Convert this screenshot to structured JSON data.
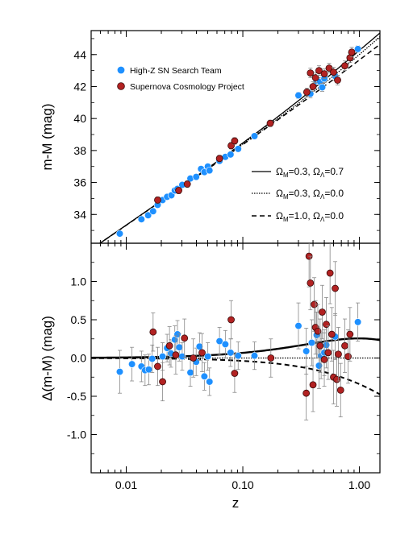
{
  "chart_data": [
    {
      "type": "scatter",
      "panel": "hubble-diagram",
      "ylabel": "m-M (mag)",
      "xlabel": "",
      "xscale": "log",
      "xlim": [
        0.005,
        1.5
      ],
      "ylim": [
        32.2,
        45.5
      ],
      "yticks": [
        "34",
        "36",
        "38",
        "40",
        "42",
        "44"
      ],
      "legend_placement": "top-left",
      "series": [
        {
          "name": "High-Z SN Search Team",
          "color": "#1e90ff",
          "points": [
            {
              "x": 0.0088,
              "y": 32.8,
              "err": 0.15
            },
            {
              "x": 0.0135,
              "y": 33.7,
              "err": 0.15
            },
            {
              "x": 0.0154,
              "y": 33.95,
              "err": 0.15
            },
            {
              "x": 0.017,
              "y": 34.2,
              "err": 0.15
            },
            {
              "x": 0.0186,
              "y": 34.6,
              "err": 0.15
            },
            {
              "x": 0.0205,
              "y": 34.9,
              "err": 0.15
            },
            {
              "x": 0.0224,
              "y": 35.1,
              "err": 0.15
            },
            {
              "x": 0.0244,
              "y": 35.2,
              "err": 0.15
            },
            {
              "x": 0.0261,
              "y": 35.5,
              "err": 0.15
            },
            {
              "x": 0.0275,
              "y": 35.6,
              "err": 0.15
            },
            {
              "x": 0.0302,
              "y": 35.85,
              "err": 0.15
            },
            {
              "x": 0.0355,
              "y": 36.25,
              "err": 0.15
            },
            {
              "x": 0.0398,
              "y": 36.35,
              "err": 0.15
            },
            {
              "x": 0.0438,
              "y": 36.85,
              "err": 0.15
            },
            {
              "x": 0.0468,
              "y": 36.65,
              "err": 0.15
            },
            {
              "x": 0.0501,
              "y": 37.0,
              "err": 0.15
            },
            {
              "x": 0.0518,
              "y": 36.75,
              "err": 0.15
            },
            {
              "x": 0.0631,
              "y": 37.35,
              "err": 0.15
            },
            {
              "x": 0.0708,
              "y": 37.6,
              "err": 0.15
            },
            {
              "x": 0.0785,
              "y": 37.75,
              "err": 0.15
            },
            {
              "x": 0.0912,
              "y": 38.1,
              "err": 0.15
            },
            {
              "x": 0.1259,
              "y": 38.9,
              "err": 0.15
            },
            {
              "x": 0.3,
              "y": 41.45,
              "err": 0.2
            },
            {
              "x": 0.38,
              "y": 41.55,
              "err": 0.25
            },
            {
              "x": 0.43,
              "y": 42.35,
              "err": 0.25
            },
            {
              "x": 0.46,
              "y": 42.3,
              "err": 0.25
            },
            {
              "x": 0.48,
              "y": 41.95,
              "err": 0.25
            },
            {
              "x": 0.5,
              "y": 42.5,
              "err": 0.25
            },
            {
              "x": 0.62,
              "y": 42.65,
              "err": 0.25
            },
            {
              "x": 0.97,
              "y": 44.35,
              "err": 0.2
            }
          ]
        },
        {
          "name": "Supernova Cosmology Project",
          "color": "#b22222",
          "points": [
            {
              "x": 0.0186,
              "y": 34.9,
              "err": 0.2
            },
            {
              "x": 0.0282,
              "y": 35.5,
              "err": 0.2
            },
            {
              "x": 0.0334,
              "y": 35.9,
              "err": 0.2
            },
            {
              "x": 0.0631,
              "y": 37.5,
              "err": 0.2
            },
            {
              "x": 0.0794,
              "y": 38.3,
              "err": 0.2
            },
            {
              "x": 0.0851,
              "y": 38.6,
              "err": 0.2
            },
            {
              "x": 0.1718,
              "y": 39.7,
              "err": 0.2
            },
            {
              "x": 0.354,
              "y": 41.65,
              "err": 0.25
            },
            {
              "x": 0.38,
              "y": 42.85,
              "err": 0.3
            },
            {
              "x": 0.4,
              "y": 42.0,
              "err": 0.3
            },
            {
              "x": 0.42,
              "y": 42.55,
              "err": 0.3
            },
            {
              "x": 0.45,
              "y": 43.0,
              "err": 0.3
            },
            {
              "x": 0.5,
              "y": 42.8,
              "err": 0.3
            },
            {
              "x": 0.55,
              "y": 43.15,
              "err": 0.3
            },
            {
              "x": 0.6,
              "y": 42.9,
              "err": 0.3
            },
            {
              "x": 0.65,
              "y": 42.4,
              "err": 0.3
            },
            {
              "x": 0.75,
              "y": 43.3,
              "err": 0.3
            },
            {
              "x": 0.83,
              "y": 43.8,
              "err": 0.3
            },
            {
              "x": 0.86,
              "y": 44.15,
              "err": 0.3
            }
          ]
        }
      ],
      "model_curves": [
        {
          "label_parts": {
            "om": "Ω",
            "sub_m": "M",
            "om_val": "=0.3, ",
            "ol": "Ω",
            "sub_l": "Λ",
            "ol_val": "=0.7"
          },
          "omega_m": 0.3,
          "omega_l": 0.7,
          "style": "solid"
        },
        {
          "label_parts": {
            "om": "Ω",
            "sub_m": "M",
            "om_val": "=0.3, ",
            "ol": "Ω",
            "sub_l": "Λ",
            "ol_val": "=0.0"
          },
          "omega_m": 0.3,
          "omega_l": 0.0,
          "style": "dotted"
        },
        {
          "label_parts": {
            "om": "Ω",
            "sub_m": "M",
            "om_val": "=1.0, ",
            "ol": "Ω",
            "sub_l": "Λ",
            "ol_val": "=0.0"
          },
          "omega_m": 1.0,
          "omega_l": 0.0,
          "style": "dashed"
        }
      ]
    },
    {
      "type": "scatter",
      "panel": "residuals",
      "ylabel": "Δ(m-M) (mag)",
      "xlabel": "z",
      "xscale": "log",
      "xlim": [
        0.005,
        1.5
      ],
      "ylim": [
        -1.5,
        1.5
      ],
      "xticks": [
        "0.01",
        "0.10",
        "1.00"
      ],
      "yticks": [
        "-1.0",
        "-0.5",
        "0.0",
        "0.5",
        "1.0"
      ],
      "series": [
        {
          "name": "High-Z SN Search Team",
          "color": "#1e90ff",
          "points": [
            {
              "x": 0.0088,
              "y": -0.18,
              "err": 0.28
            },
            {
              "x": 0.0112,
              "y": -0.08,
              "err": 0.22
            },
            {
              "x": 0.0135,
              "y": -0.11,
              "err": 0.2
            },
            {
              "x": 0.0145,
              "y": -0.16,
              "err": 0.2
            },
            {
              "x": 0.0156,
              "y": -0.15,
              "err": 0.2
            },
            {
              "x": 0.0167,
              "y": -0.01,
              "err": 0.18
            },
            {
              "x": 0.0205,
              "y": 0.02,
              "err": 0.18
            },
            {
              "x": 0.0224,
              "y": 0.13,
              "err": 0.18
            },
            {
              "x": 0.0242,
              "y": 0.06,
              "err": 0.18
            },
            {
              "x": 0.0261,
              "y": 0.24,
              "err": 0.18
            },
            {
              "x": 0.0275,
              "y": 0.31,
              "err": 0.18
            },
            {
              "x": 0.0285,
              "y": 0.14,
              "err": 0.18
            },
            {
              "x": 0.0302,
              "y": 0.02,
              "err": 0.18
            },
            {
              "x": 0.0355,
              "y": -0.19,
              "err": 0.18
            },
            {
              "x": 0.0398,
              "y": -0.05,
              "err": 0.18
            },
            {
              "x": 0.0425,
              "y": 0.15,
              "err": 0.18
            },
            {
              "x": 0.0468,
              "y": -0.24,
              "err": 0.18
            },
            {
              "x": 0.0501,
              "y": 0.02,
              "err": 0.18
            },
            {
              "x": 0.0518,
              "y": -0.31,
              "err": 0.18
            },
            {
              "x": 0.0631,
              "y": 0.22,
              "err": 0.18
            },
            {
              "x": 0.0708,
              "y": 0.18,
              "err": 0.18
            },
            {
              "x": 0.0785,
              "y": 0.07,
              "err": 0.18
            },
            {
              "x": 0.0912,
              "y": 0.03,
              "err": 0.18
            },
            {
              "x": 0.1259,
              "y": 0.03,
              "err": 0.18
            },
            {
              "x": 0.3,
              "y": 0.42,
              "err": 0.3
            },
            {
              "x": 0.35,
              "y": 0.09,
              "err": 0.3
            },
            {
              "x": 0.39,
              "y": 0.2,
              "err": 0.3
            },
            {
              "x": 0.43,
              "y": 0.3,
              "err": 0.3
            },
            {
              "x": 0.45,
              "y": -0.1,
              "err": 0.3
            },
            {
              "x": 0.47,
              "y": 0.03,
              "err": 0.3
            },
            {
              "x": 0.5,
              "y": 0.07,
              "err": 0.3
            },
            {
              "x": 0.52,
              "y": 0.17,
              "err": 0.3
            },
            {
              "x": 0.62,
              "y": 0.28,
              "err": 0.3
            },
            {
              "x": 0.97,
              "y": 0.47,
              "err": 0.25
            }
          ]
        },
        {
          "name": "Supernova Cosmology Project",
          "color": "#b22222",
          "points": [
            {
              "x": 0.017,
              "y": 0.34,
              "err": 0.25
            },
            {
              "x": 0.0186,
              "y": -0.11,
              "err": 0.25
            },
            {
              "x": 0.0205,
              "y": -0.31,
              "err": 0.25
            },
            {
              "x": 0.0235,
              "y": 0.16,
              "err": 0.25
            },
            {
              "x": 0.0266,
              "y": 0.04,
              "err": 0.25
            },
            {
              "x": 0.0316,
              "y": 0.26,
              "err": 0.25
            },
            {
              "x": 0.0376,
              "y": 0.0,
              "err": 0.25
            },
            {
              "x": 0.0447,
              "y": 0.07,
              "err": 0.25
            },
            {
              "x": 0.0794,
              "y": 0.5,
              "err": 0.25
            },
            {
              "x": 0.0851,
              "y": -0.2,
              "err": 0.25
            },
            {
              "x": 0.174,
              "y": 0.0,
              "err": 0.25
            },
            {
              "x": 0.35,
              "y": -0.46,
              "err": 0.35
            },
            {
              "x": 0.37,
              "y": 1.33,
              "err": 0.4
            },
            {
              "x": 0.38,
              "y": 0.98,
              "err": 0.35
            },
            {
              "x": 0.4,
              "y": -0.35,
              "err": 0.35
            },
            {
              "x": 0.41,
              "y": 0.7,
              "err": 0.35
            },
            {
              "x": 0.42,
              "y": 0.4,
              "err": 0.35
            },
            {
              "x": 0.44,
              "y": 0.35,
              "err": 0.35
            },
            {
              "x": 0.46,
              "y": 0.16,
              "err": 0.35
            },
            {
              "x": 0.48,
              "y": 0.6,
              "err": 0.35
            },
            {
              "x": 0.5,
              "y": -0.02,
              "err": 0.35
            },
            {
              "x": 0.52,
              "y": 0.44,
              "err": 0.35
            },
            {
              "x": 0.54,
              "y": 0.07,
              "err": 0.35
            },
            {
              "x": 0.56,
              "y": 1.11,
              "err": 0.4
            },
            {
              "x": 0.58,
              "y": 0.31,
              "err": 0.35
            },
            {
              "x": 0.6,
              "y": -0.25,
              "err": 0.35
            },
            {
              "x": 0.62,
              "y": 0.91,
              "err": 0.35
            },
            {
              "x": 0.64,
              "y": -0.28,
              "err": 0.35
            },
            {
              "x": 0.66,
              "y": 0.05,
              "err": 0.35
            },
            {
              "x": 0.69,
              "y": -0.42,
              "err": 0.35
            },
            {
              "x": 0.75,
              "y": 0.16,
              "err": 0.35
            },
            {
              "x": 0.8,
              "y": 0.02,
              "err": 0.35
            },
            {
              "x": 0.83,
              "y": 0.31,
              "err": 0.35
            }
          ]
        }
      ],
      "model_curves": [
        {
          "omega_m": 0.3,
          "omega_l": 0.7,
          "style": "solid"
        },
        {
          "omega_m": 0.3,
          "omega_l": 0.0,
          "style": "dotted"
        },
        {
          "omega_m": 1.0,
          "omega_l": 0.0,
          "style": "dashed"
        }
      ]
    }
  ]
}
